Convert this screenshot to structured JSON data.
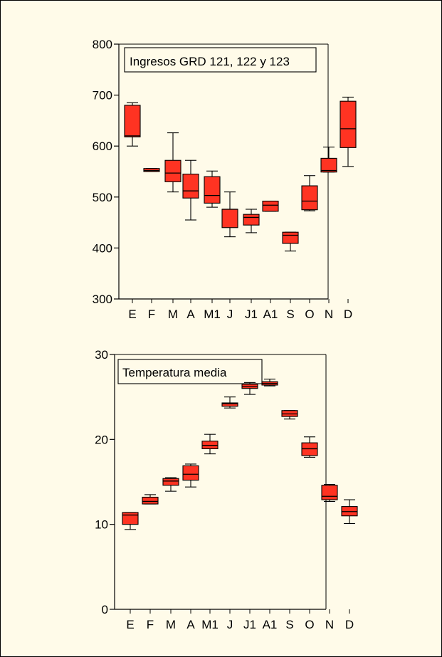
{
  "colors": {
    "box_fill": "#ff3322",
    "line": "#000000",
    "panel_bg": "#fffbe9"
  },
  "chart_data": [
    {
      "type": "box",
      "title": "Ingresos GRD 121, 122 y 123",
      "categories": [
        "E",
        "F",
        "M",
        "A",
        "M1",
        "J",
        "J1",
        "A1",
        "S",
        "O",
        "N",
        "D"
      ],
      "ylim": [
        300,
        800
      ],
      "yticks": [
        300,
        400,
        500,
        600,
        700,
        800
      ],
      "boxes": [
        {
          "min": 600,
          "q1": 618,
          "median": 620,
          "q3": 680,
          "max": 685
        },
        {
          "min": 550,
          "q1": 550,
          "median": 552,
          "q3": 556,
          "max": 556
        },
        {
          "min": 510,
          "q1": 530,
          "median": 547,
          "q3": 572,
          "max": 626
        },
        {
          "min": 455,
          "q1": 498,
          "median": 512,
          "q3": 545,
          "max": 572
        },
        {
          "min": 480,
          "q1": 488,
          "median": 503,
          "q3": 540,
          "max": 551
        },
        {
          "min": 422,
          "q1": 440,
          "median": 476,
          "q3": 476,
          "max": 510
        },
        {
          "min": 430,
          "q1": 445,
          "median": 460,
          "q3": 466,
          "max": 476
        },
        {
          "min": 472,
          "q1": 472,
          "median": 484,
          "q3": 492,
          "max": 492
        },
        {
          "min": 394,
          "q1": 409,
          "median": 425,
          "q3": 431,
          "max": 431
        },
        {
          "min": 473,
          "q1": 475,
          "median": 492,
          "q3": 522,
          "max": 542
        },
        {
          "min": 549,
          "q1": 549,
          "median": 552,
          "q3": 576,
          "max": 598
        },
        {
          "min": 560,
          "q1": 597,
          "median": 634,
          "q3": 688,
          "max": 696
        }
      ]
    },
    {
      "type": "box",
      "title": "Temperatura media",
      "categories": [
        "E",
        "F",
        "M",
        "A",
        "M1",
        "J",
        "J1",
        "A1",
        "S",
        "O",
        "N",
        "D"
      ],
      "ylim": [
        0,
        30
      ],
      "yticks": [
        0,
        10,
        20,
        30
      ],
      "boxes": [
        {
          "min": 9.4,
          "q1": 10.0,
          "median": 11.1,
          "q3": 11.4,
          "max": 11.4
        },
        {
          "min": 12.4,
          "q1": 12.4,
          "median": 12.7,
          "q3": 13.2,
          "max": 13.5
        },
        {
          "min": 13.9,
          "q1": 14.6,
          "median": 15.1,
          "q3": 15.4,
          "max": 15.5
        },
        {
          "min": 14.4,
          "q1": 15.2,
          "median": 15.9,
          "q3": 16.9,
          "max": 17.1
        },
        {
          "min": 18.3,
          "q1": 18.9,
          "median": 19.3,
          "q3": 19.8,
          "max": 20.6
        },
        {
          "min": 23.7,
          "q1": 23.9,
          "median": 24.2,
          "q3": 24.3,
          "max": 25.0
        },
        {
          "min": 25.3,
          "q1": 26.0,
          "median": 26.2,
          "q3": 26.5,
          "max": 26.7
        },
        {
          "min": 26.3,
          "q1": 26.4,
          "median": 26.6,
          "q3": 26.8,
          "max": 27.1
        },
        {
          "min": 22.4,
          "q1": 22.7,
          "median": 23.0,
          "q3": 23.4,
          "max": 23.4
        },
        {
          "min": 17.9,
          "q1": 18.1,
          "median": 18.9,
          "q3": 19.6,
          "max": 20.3
        },
        {
          "min": 12.7,
          "q1": 12.9,
          "median": 13.3,
          "q3": 14.6,
          "max": 14.7
        },
        {
          "min": 10.1,
          "q1": 11.0,
          "median": 11.5,
          "q3": 12.1,
          "max": 12.9
        }
      ]
    }
  ]
}
